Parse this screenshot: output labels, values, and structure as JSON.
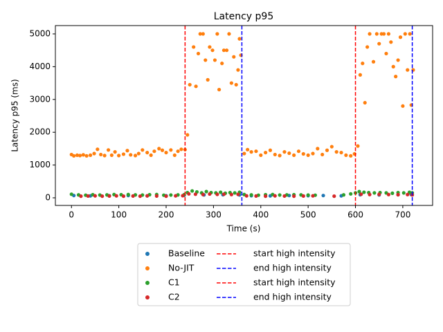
{
  "chart_data": {
    "type": "scatter",
    "title": "Latency p95",
    "x_label": "Time (s)",
    "y_label": "Latency p95 (ms)",
    "xlim": [
      -34,
      763
    ],
    "ylim": [
      -232,
      5253
    ],
    "xticks": [
      0,
      100,
      200,
      300,
      400,
      500,
      600,
      700
    ],
    "yticks": [
      0,
      1000,
      2000,
      3000,
      4000,
      5000
    ],
    "series": [
      {
        "name": "Baseline",
        "color": "#1f77b4",
        "x": [
          5,
          40,
          80,
          120,
          160,
          200,
          238,
          280,
          320,
          355,
          380,
          420,
          460,
          500,
          532,
          570,
          610,
          650,
          690,
          718
        ],
        "values": [
          70,
          60,
          65,
          70,
          60,
          65,
          75,
          90,
          95,
          90,
          65,
          60,
          70,
          65,
          70,
          60,
          95,
          90,
          95,
          100
        ]
      },
      {
        "name": "No-JIT",
        "color": "#ff7f0e",
        "x": [
          0,
          5,
          12,
          18,
          25,
          32,
          40,
          48,
          55,
          62,
          70,
          78,
          85,
          92,
          100,
          110,
          118,
          125,
          135,
          142,
          150,
          160,
          168,
          175,
          185,
          192,
          200,
          210,
          218,
          225,
          232,
          240,
          245,
          250,
          258,
          263,
          268,
          272,
          278,
          283,
          288,
          292,
          298,
          303,
          308,
          312,
          318,
          322,
          328,
          333,
          338,
          343,
          348,
          352,
          355,
          358,
          365,
          372,
          380,
          390,
          400,
          410,
          420,
          430,
          440,
          450,
          460,
          470,
          480,
          490,
          500,
          510,
          520,
          530,
          540,
          550,
          560,
          570,
          580,
          590,
          598,
          605,
          610,
          615,
          620,
          625,
          630,
          638,
          645,
          650,
          655,
          660,
          665,
          670,
          675,
          680,
          685,
          690,
          695,
          700,
          705,
          710,
          715,
          718,
          722
        ],
        "values": [
          1320,
          1280,
          1300,
          1290,
          1310,
          1280,
          1300,
          1350,
          1480,
          1320,
          1290,
          1460,
          1300,
          1400,
          1290,
          1330,
          1440,
          1310,
          1290,
          1350,
          1460,
          1380,
          1300,
          1420,
          1500,
          1450,
          1380,
          1460,
          1300,
          1420,
          1480,
          1470,
          1920,
          3450,
          4600,
          3400,
          4400,
          5000,
          5000,
          4200,
          3600,
          4600,
          4500,
          4200,
          5000,
          3300,
          4100,
          4500,
          4500,
          5000,
          3500,
          4300,
          3450,
          3900,
          4850,
          4350,
          1350,
          1470,
          1400,
          1420,
          1300,
          1380,
          1450,
          1320,
          1290,
          1400,
          1360,
          1300,
          1420,
          1340,
          1300,
          1350,
          1500,
          1320,
          1450,
          1560,
          1400,
          1380,
          1300,
          1280,
          1340,
          1580,
          3750,
          4100,
          2900,
          4600,
          5000,
          4150,
          5000,
          4700,
          5000,
          5000,
          4400,
          5000,
          4750,
          4000,
          3700,
          4200,
          4900,
          2800,
          5000,
          3900,
          5000,
          2830,
          3900
        ]
      },
      {
        "name": "C1",
        "color": "#2ca02c",
        "x": [
          0,
          15,
          30,
          45,
          60,
          75,
          90,
          105,
          120,
          135,
          150,
          165,
          180,
          195,
          210,
          225,
          238,
          245,
          255,
          265,
          275,
          285,
          295,
          305,
          315,
          325,
          335,
          345,
          355,
          365,
          380,
          395,
          410,
          425,
          440,
          455,
          470,
          485,
          500,
          515,
          575,
          590,
          600,
          608,
          618,
          628,
          640,
          652,
          665,
          678,
          690,
          702,
          714,
          720
        ],
        "values": [
          110,
          90,
          80,
          95,
          85,
          90,
          100,
          95,
          100,
          90,
          85,
          95,
          100,
          80,
          85,
          90,
          95,
          160,
          210,
          180,
          150,
          190,
          160,
          150,
          170,
          140,
          160,
          150,
          170,
          100,
          90,
          80,
          95,
          100,
          85,
          90,
          95,
          90,
          85,
          80,
          90,
          120,
          150,
          190,
          170,
          160,
          150,
          160,
          150,
          140,
          160,
          150,
          170,
          150
        ]
      },
      {
        "name": "C2",
        "color": "#d62728",
        "x": [
          20,
          35,
          50,
          65,
          80,
          95,
          110,
          130,
          145,
          160,
          180,
          200,
          220,
          235,
          248,
          262,
          278,
          292,
          308,
          322,
          338,
          352,
          370,
          390,
          410,
          430,
          450,
          470,
          490,
          510,
          555,
          612,
          630,
          650,
          670,
          690,
          710,
          720
        ],
        "values": [
          50,
          55,
          60,
          50,
          55,
          60,
          50,
          55,
          50,
          60,
          55,
          50,
          60,
          65,
          120,
          110,
          100,
          115,
          105,
          110,
          100,
          105,
          60,
          55,
          50,
          60,
          55,
          50,
          55,
          60,
          50,
          110,
          100,
          105,
          100,
          95,
          100,
          90
        ]
      }
    ],
    "vlines": [
      {
        "name": "start high intensity",
        "x": 240,
        "color": "#ff0000"
      },
      {
        "name": "end high intensity",
        "x": 360,
        "color": "#0000ff"
      },
      {
        "name": "start high intensity",
        "x": 600,
        "color": "#ff0000"
      },
      {
        "name": "end high intensity",
        "x": 720,
        "color": "#0000ff"
      }
    ]
  }
}
